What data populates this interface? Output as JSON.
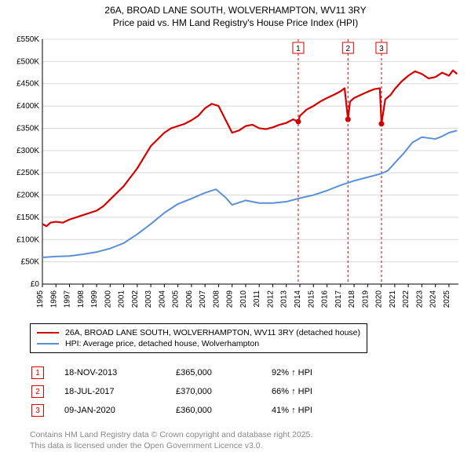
{
  "title": {
    "line1": "26A, BROAD LANE SOUTH, WOLVERHAMPTON, WV11 3RY",
    "line2": "Price paid vs. HM Land Registry's House Price Index (HPI)"
  },
  "chart": {
    "type": "line",
    "background_color": "#ffffff",
    "grid_color": "#d8d8d8",
    "axis_color": "#000000",
    "title_fontsize": 12,
    "label_fontsize": 10,
    "x": {
      "min": 1995,
      "max": 2025.7,
      "ticks": [
        1995,
        1996,
        1997,
        1998,
        1999,
        2000,
        2001,
        2002,
        2003,
        2004,
        2005,
        2006,
        2007,
        2008,
        2009,
        2010,
        2011,
        2012,
        2013,
        2014,
        2015,
        2016,
        2017,
        2018,
        2019,
        2020,
        2021,
        2022,
        2023,
        2024,
        2025
      ]
    },
    "y": {
      "min": 0,
      "max": 550,
      "ticks": [
        0,
        50,
        100,
        150,
        200,
        250,
        300,
        350,
        400,
        450,
        500,
        550
      ],
      "tick_labels": [
        "£0",
        "£50K",
        "£100K",
        "£150K",
        "£200K",
        "£250K",
        "£300K",
        "£350K",
        "£400K",
        "£450K",
        "£500K",
        "£550K"
      ]
    },
    "series": [
      {
        "name": "price_paid",
        "color": "#d40000",
        "line_width": 2.2,
        "data": [
          [
            1995,
            135
          ],
          [
            1995.3,
            130
          ],
          [
            1995.6,
            138
          ],
          [
            1996,
            140
          ],
          [
            1996.5,
            138
          ],
          [
            1997,
            145
          ],
          [
            1997.5,
            150
          ],
          [
            1998,
            155
          ],
          [
            1998.5,
            160
          ],
          [
            1999,
            165
          ],
          [
            1999.5,
            175
          ],
          [
            2000,
            190
          ],
          [
            2000.5,
            205
          ],
          [
            2001,
            220
          ],
          [
            2001.5,
            240
          ],
          [
            2002,
            260
          ],
          [
            2002.5,
            285
          ],
          [
            2003,
            310
          ],
          [
            2003.5,
            325
          ],
          [
            2004,
            340
          ],
          [
            2004.5,
            350
          ],
          [
            2005,
            355
          ],
          [
            2005.5,
            360
          ],
          [
            2006,
            368
          ],
          [
            2006.5,
            378
          ],
          [
            2007,
            395
          ],
          [
            2007.5,
            405
          ],
          [
            2008,
            400
          ],
          [
            2008.5,
            370
          ],
          [
            2009,
            340
          ],
          [
            2009.5,
            345
          ],
          [
            2010,
            355
          ],
          [
            2010.5,
            358
          ],
          [
            2011,
            350
          ],
          [
            2011.5,
            348
          ],
          [
            2012,
            352
          ],
          [
            2012.5,
            358
          ],
          [
            2013,
            362
          ],
          [
            2013.5,
            370
          ],
          [
            2013.88,
            365
          ],
          [
            2014,
            378
          ],
          [
            2014.5,
            392
          ],
          [
            2015,
            400
          ],
          [
            2015.5,
            410
          ],
          [
            2016,
            418
          ],
          [
            2016.5,
            425
          ],
          [
            2017,
            433
          ],
          [
            2017.3,
            440
          ],
          [
            2017.55,
            370
          ],
          [
            2017.7,
            410
          ],
          [
            2018,
            418
          ],
          [
            2018.5,
            425
          ],
          [
            2019,
            432
          ],
          [
            2019.5,
            438
          ],
          [
            2019.9,
            440
          ],
          [
            2020.02,
            360
          ],
          [
            2020.3,
            415
          ],
          [
            2020.7,
            425
          ],
          [
            2021,
            438
          ],
          [
            2021.5,
            455
          ],
          [
            2022,
            468
          ],
          [
            2022.5,
            478
          ],
          [
            2023,
            472
          ],
          [
            2023.5,
            462
          ],
          [
            2024,
            465
          ],
          [
            2024.5,
            475
          ],
          [
            2025,
            468
          ],
          [
            2025.3,
            480
          ],
          [
            2025.6,
            472
          ]
        ]
      },
      {
        "name": "hpi",
        "color": "#5b8fd6",
        "line_width": 2.0,
        "data": [
          [
            1995,
            60
          ],
          [
            1996,
            62
          ],
          [
            1997,
            63
          ],
          [
            1998,
            67
          ],
          [
            1999,
            72
          ],
          [
            2000,
            80
          ],
          [
            2001,
            92
          ],
          [
            2002,
            112
          ],
          [
            2003,
            135
          ],
          [
            2004,
            160
          ],
          [
            2005,
            180
          ],
          [
            2006,
            192
          ],
          [
            2007,
            205
          ],
          [
            2007.8,
            213
          ],
          [
            2008.5,
            195
          ],
          [
            2009,
            178
          ],
          [
            2010,
            188
          ],
          [
            2011,
            182
          ],
          [
            2012,
            182
          ],
          [
            2013,
            185
          ],
          [
            2014,
            193
          ],
          [
            2015,
            200
          ],
          [
            2016,
            210
          ],
          [
            2017,
            222
          ],
          [
            2018,
            232
          ],
          [
            2019,
            240
          ],
          [
            2020,
            248
          ],
          [
            2020.5,
            255
          ],
          [
            2021,
            272
          ],
          [
            2021.7,
            295
          ],
          [
            2022.3,
            318
          ],
          [
            2023,
            330
          ],
          [
            2023.5,
            328
          ],
          [
            2024,
            326
          ],
          [
            2024.5,
            332
          ],
          [
            2025,
            340
          ],
          [
            2025.6,
            345
          ]
        ]
      }
    ],
    "marker_lines": {
      "color": "#d40000",
      "dash": "3,3",
      "width": 1,
      "positions": [
        {
          "num": "1",
          "x": 2013.88
        },
        {
          "num": "2",
          "x": 2017.55
        },
        {
          "num": "3",
          "x": 2020.02
        }
      ]
    },
    "sale_points": {
      "color": "#d40000",
      "radius": 3.5,
      "points": [
        {
          "x": 2013.88,
          "y": 365
        },
        {
          "x": 2017.55,
          "y": 370
        },
        {
          "x": 2020.02,
          "y": 360
        }
      ]
    }
  },
  "legend": {
    "items": [
      {
        "color": "#d40000",
        "label": "26A, BROAD LANE SOUTH, WOLVERHAMPTON, WV11 3RY (detached house)"
      },
      {
        "color": "#5b8fd6",
        "label": "HPI: Average price, detached house, Wolverhampton"
      }
    ]
  },
  "markers_table": {
    "col_widths": [
      "40px",
      "140px",
      "120px",
      "120px"
    ],
    "rows": [
      {
        "num": "1",
        "date": "18-NOV-2013",
        "price": "£365,000",
        "hpi": "92% ↑ HPI"
      },
      {
        "num": "2",
        "date": "18-JUL-2017",
        "price": "£370,000",
        "hpi": "66% ↑ HPI"
      },
      {
        "num": "3",
        "date": "09-JAN-2020",
        "price": "£360,000",
        "hpi": "41% ↑ HPI"
      }
    ]
  },
  "footer": {
    "line1": "Contains HM Land Registry data © Crown copyright and database right 2025.",
    "line2": "This data is licensed under the Open Government Licence v3.0."
  },
  "colors": {
    "marker_border": "#d40000",
    "footer_text": "#888888"
  }
}
